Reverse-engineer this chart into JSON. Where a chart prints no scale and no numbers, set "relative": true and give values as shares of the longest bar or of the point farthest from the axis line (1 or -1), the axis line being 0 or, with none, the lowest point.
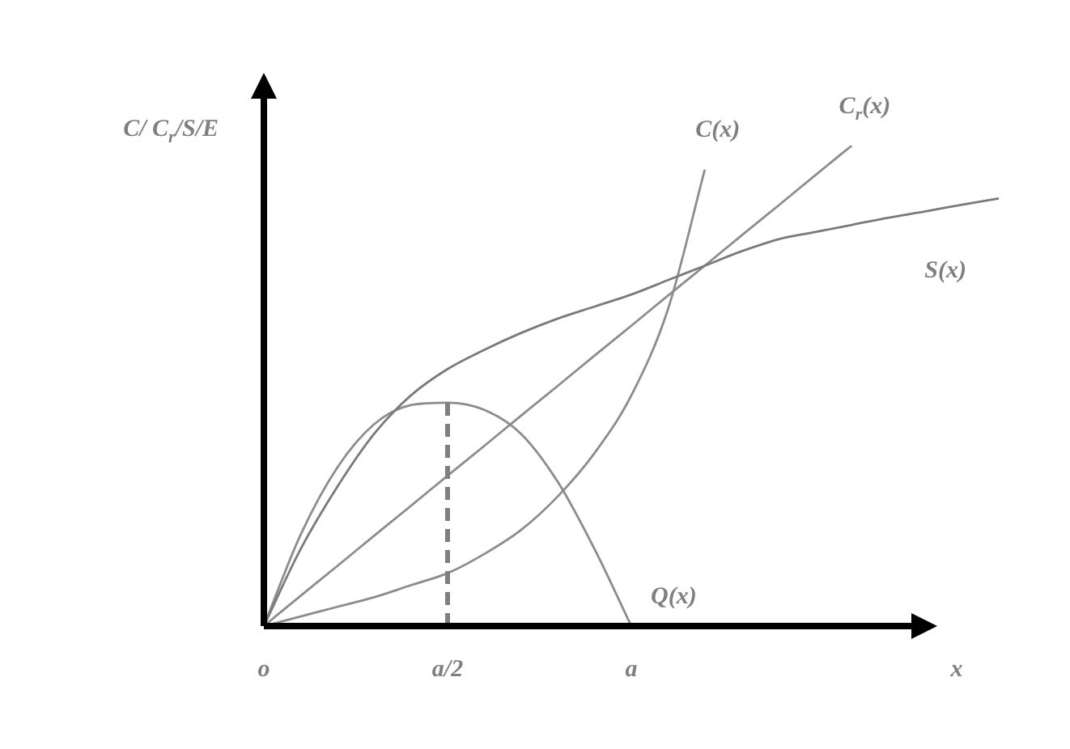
{
  "chart_data": {
    "type": "line",
    "relative": true,
    "legend": false,
    "xlabel": "x",
    "ylabel": "C/ C$_{r}$/S/E",
    "categories": [
      "o",
      null,
      null,
      null,
      null,
      "a/2",
      null,
      null,
      null,
      null,
      "a",
      null,
      null,
      null,
      null,
      null,
      null,
      null,
      null,
      null,
      null
    ],
    "series": [
      {
        "name": "S(x)",
        "color": "#7a7a7a",
        "values": [
          0,
          0.16,
          0.29,
          0.4,
          0.48,
          0.535,
          0.575,
          0.61,
          0.64,
          0.665,
          0.69,
          0.72,
          0.75,
          0.78,
          0.805,
          0.82,
          0.835,
          0.85,
          0.863,
          0.877,
          0.89
        ]
      },
      {
        "name": "C$_{r}$(x)",
        "color": "#8c8c8c",
        "values": [
          0,
          0.063,
          0.125,
          0.188,
          0.25,
          0.313,
          0.375,
          0.438,
          0.5,
          0.563,
          0.625,
          0.688,
          0.75,
          0.813,
          0.875,
          0.938,
          1.0,
          null,
          null,
          null,
          null
        ]
      },
      {
        "name": "C(x)",
        "color": "#8c8c8c",
        "values": [
          0,
          0.02,
          0.04,
          0.06,
          0.085,
          0.11,
          0.15,
          0.2,
          0.27,
          0.36,
          0.48,
          0.66,
          0.95,
          null,
          null,
          null,
          null,
          null,
          null,
          null,
          null
        ]
      },
      {
        "name": "Q(x)",
        "color": "#8c8c8c",
        "values": [
          0,
          0.19,
          0.33,
          0.42,
          0.46,
          0.465,
          0.45,
          0.4,
          0.3,
          0.16,
          0,
          null,
          null,
          null,
          null,
          null,
          null,
          null,
          null,
          null,
          null
        ]
      }
    ],
    "ref_lines": [
      {
        "axis": "x",
        "value": "a/2",
        "color": "#7f7f7f",
        "line_style": "dashed"
      }
    ]
  }
}
